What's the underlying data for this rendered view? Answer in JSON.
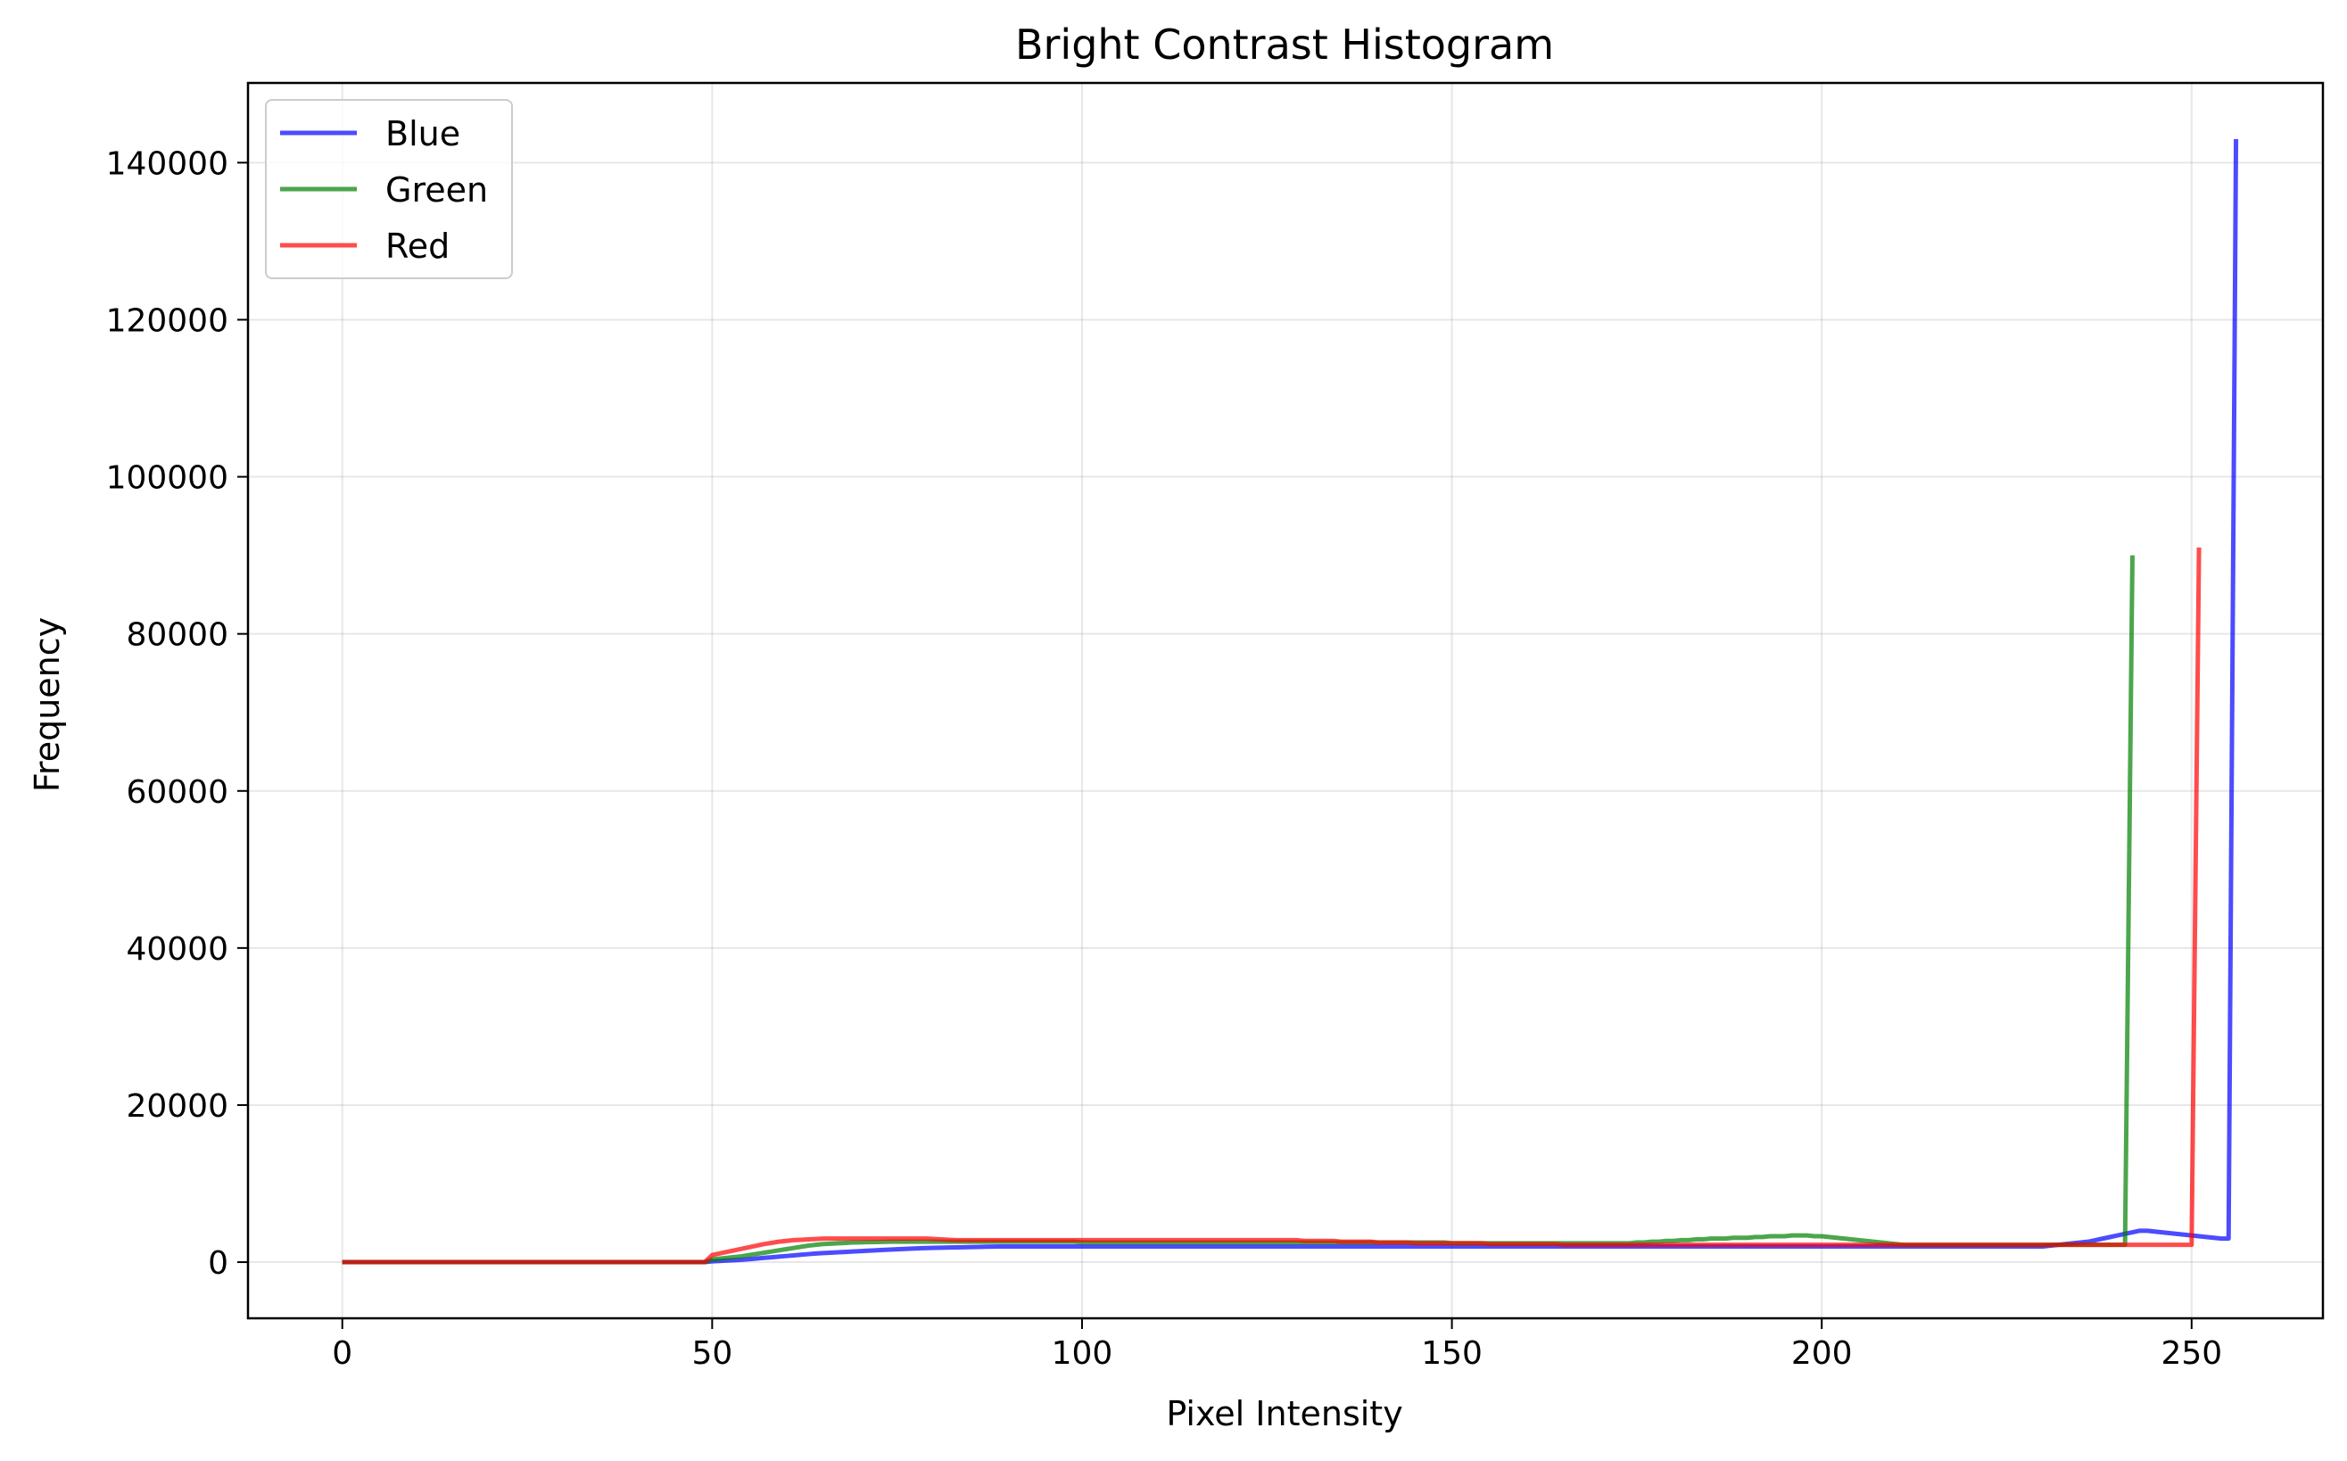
{
  "chart_data": {
    "type": "line",
    "title": "Bright Contrast Histogram",
    "xlabel": "Pixel Intensity",
    "ylabel": "Frequency",
    "xlim": [
      -12.75,
      267.75
    ],
    "ylim": [
      -7150,
      150150
    ],
    "xticks": [
      0,
      50,
      100,
      150,
      200,
      250
    ],
    "yticks": [
      0,
      20000,
      40000,
      60000,
      80000,
      100000,
      120000,
      140000
    ],
    "grid": true,
    "legend_position": "top-left",
    "series": [
      {
        "name": "Blue",
        "color": "#0000ff",
        "values": [
          0,
          0,
          0,
          0,
          0,
          0,
          0,
          0,
          0,
          0,
          0,
          0,
          0,
          0,
          0,
          0,
          0,
          0,
          0,
          0,
          0,
          0,
          0,
          0,
          0,
          0,
          0,
          0,
          0,
          0,
          0,
          0,
          0,
          0,
          0,
          0,
          0,
          0,
          0,
          0,
          0,
          0,
          0,
          0,
          0,
          0,
          0,
          0,
          0,
          0,
          100,
          150,
          200,
          250,
          300,
          380,
          460,
          540,
          620,
          700,
          780,
          860,
          940,
          1020,
          1100,
          1150,
          1200,
          1250,
          1300,
          1350,
          1400,
          1450,
          1500,
          1550,
          1600,
          1640,
          1680,
          1720,
          1760,
          1800,
          1820,
          1840,
          1860,
          1880,
          1900,
          1920,
          1940,
          1960,
          1980,
          2000,
          2000,
          2000,
          2000,
          2000,
          2000,
          2000,
          2000,
          2000,
          2000,
          2000,
          2000,
          2000,
          2000,
          2000,
          2000,
          2000,
          2000,
          2000,
          2000,
          2000,
          2000,
          2000,
          2000,
          2000,
          2000,
          2000,
          2000,
          2000,
          2000,
          2000,
          2000,
          2000,
          2000,
          2000,
          2000,
          2000,
          2000,
          2000,
          2000,
          2000,
          2000,
          2000,
          2000,
          2000,
          2000,
          2000,
          2000,
          2000,
          2000,
          2000,
          2000,
          2000,
          2000,
          2000,
          2000,
          2000,
          2000,
          2000,
          2000,
          2000,
          2000,
          2000,
          2000,
          2000,
          2000,
          2000,
          2000,
          2000,
          2000,
          2000,
          2000,
          2000,
          2000,
          2000,
          2000,
          2000,
          2000,
          2000,
          2000,
          2000,
          2000,
          2000,
          2000,
          2000,
          2000,
          2000,
          2000,
          2000,
          2000,
          2000,
          2000,
          2000,
          2000,
          2000,
          2000,
          2000,
          2000,
          2000,
          2000,
          2000,
          2000,
          2000,
          2000,
          2000,
          2000,
          2000,
          2000,
          2000,
          2000,
          2000,
          2000,
          2000,
          2000,
          2000,
          2000,
          2000,
          2000,
          2000,
          2000,
          2000,
          2000,
          2000,
          2000,
          2000,
          2000,
          2000,
          2000,
          2000,
          2000,
          2000,
          2000,
          2000,
          2000,
          2000,
          2000,
          2000,
          2000,
          2000,
          2000,
          2000,
          2000,
          2100,
          2200,
          2300,
          2400,
          2500,
          2600,
          2800,
          3000,
          3200,
          3400,
          3600,
          3800,
          4000,
          4000,
          3900,
          3800,
          3700,
          3600,
          3500,
          3400,
          3300,
          3200,
          3100,
          3000,
          3000,
          143000
        ]
      },
      {
        "name": "Green",
        "color": "#008000",
        "values": [
          0,
          0,
          0,
          0,
          0,
          0,
          0,
          0,
          0,
          0,
          0,
          0,
          0,
          0,
          0,
          0,
          0,
          0,
          0,
          0,
          0,
          0,
          0,
          0,
          0,
          0,
          0,
          0,
          0,
          0,
          0,
          0,
          0,
          0,
          0,
          0,
          0,
          0,
          0,
          0,
          0,
          0,
          0,
          0,
          0,
          0,
          0,
          0,
          0,
          0,
          350,
          450,
          550,
          650,
          750,
          900,
          1050,
          1200,
          1350,
          1500,
          1650,
          1800,
          1950,
          2100,
          2200,
          2300,
          2350,
          2400,
          2450,
          2500,
          2520,
          2540,
          2560,
          2580,
          2600,
          2600,
          2600,
          2600,
          2600,
          2600,
          2600,
          2600,
          2600,
          2600,
          2600,
          2600,
          2600,
          2600,
          2600,
          2600,
          2600,
          2600,
          2600,
          2600,
          2600,
          2600,
          2600,
          2600,
          2600,
          2600,
          2500,
          2500,
          2500,
          2500,
          2500,
          2500,
          2500,
          2500,
          2500,
          2500,
          2500,
          2500,
          2500,
          2500,
          2500,
          2500,
          2500,
          2500,
          2500,
          2500,
          2500,
          2500,
          2500,
          2500,
          2500,
          2500,
          2500,
          2500,
          2500,
          2500,
          2500,
          2500,
          2500,
          2500,
          2500,
          2500,
          2500,
          2500,
          2500,
          2500,
          2500,
          2500,
          2500,
          2500,
          2500,
          2500,
          2500,
          2500,
          2500,
          2500,
          2400,
          2400,
          2400,
          2400,
          2400,
          2400,
          2400,
          2400,
          2400,
          2400,
          2400,
          2400,
          2400,
          2400,
          2400,
          2400,
          2400,
          2400,
          2400,
          2400,
          2400,
          2400,
          2400,
          2400,
          2400,
          2500,
          2500,
          2600,
          2600,
          2700,
          2700,
          2800,
          2800,
          2900,
          2900,
          3000,
          3000,
          3000,
          3100,
          3100,
          3100,
          3200,
          3200,
          3300,
          3300,
          3300,
          3400,
          3400,
          3400,
          3300,
          3300,
          3200,
          3100,
          3000,
          2900,
          2800,
          2700,
          2600,
          2500,
          2400,
          2300,
          2200,
          2200,
          2200,
          2200,
          2200,
          2200,
          2200,
          2200,
          2200,
          2200,
          2200,
          2200,
          2200,
          2200,
          2200,
          2200,
          2200,
          2200,
          2200,
          2200,
          2200,
          2200,
          2200,
          2200,
          2200,
          2200,
          2200,
          2200,
          2200,
          2200,
          2200,
          90000
        ]
      },
      {
        "name": "Red",
        "color": "#ff0000",
        "values": [
          0,
          0,
          0,
          0,
          0,
          0,
          0,
          0,
          0,
          0,
          0,
          0,
          0,
          0,
          0,
          0,
          0,
          0,
          0,
          0,
          0,
          0,
          0,
          0,
          0,
          0,
          0,
          0,
          0,
          0,
          0,
          0,
          0,
          0,
          0,
          0,
          0,
          0,
          0,
          0,
          0,
          0,
          0,
          0,
          0,
          0,
          0,
          0,
          0,
          0,
          900,
          1100,
          1300,
          1500,
          1700,
          1900,
          2100,
          2300,
          2450,
          2600,
          2700,
          2800,
          2850,
          2900,
          2950,
          3000,
          3000,
          3000,
          3000,
          3000,
          3000,
          3000,
          3000,
          3000,
          3000,
          3000,
          3000,
          3000,
          3000,
          3000,
          2950,
          2900,
          2850,
          2800,
          2800,
          2800,
          2800,
          2800,
          2800,
          2800,
          2800,
          2800,
          2800,
          2800,
          2800,
          2800,
          2800,
          2800,
          2800,
          2800,
          2800,
          2800,
          2800,
          2800,
          2800,
          2800,
          2800,
          2800,
          2800,
          2800,
          2800,
          2800,
          2800,
          2800,
          2800,
          2800,
          2800,
          2800,
          2800,
          2800,
          2800,
          2800,
          2800,
          2800,
          2800,
          2800,
          2800,
          2800,
          2800,
          2800,
          2700,
          2700,
          2700,
          2700,
          2700,
          2600,
          2600,
          2600,
          2600,
          2600,
          2500,
          2500,
          2500,
          2500,
          2500,
          2400,
          2400,
          2400,
          2400,
          2400,
          2400,
          2400,
          2400,
          2400,
          2400,
          2300,
          2300,
          2300,
          2300,
          2300,
          2300,
          2300,
          2300,
          2300,
          2300,
          2200,
          2200,
          2200,
          2200,
          2200,
          2200,
          2200,
          2200,
          2200,
          2200,
          2200,
          2200,
          2200,
          2200,
          2200,
          2200,
          2200,
          2200,
          2200,
          2200,
          2200,
          2200,
          2200,
          2200,
          2200,
          2200,
          2200,
          2200,
          2200,
          2200,
          2200,
          2200,
          2200,
          2200,
          2200,
          2200,
          2200,
          2200,
          2200,
          2200,
          2200,
          2200,
          2200,
          2200,
          2200,
          2200,
          2200,
          2200,
          2200,
          2200,
          2200,
          2200,
          2200,
          2200,
          2200,
          2200,
          2200,
          2200,
          2200,
          2200,
          2200,
          2200,
          2200,
          2200,
          2200,
          2200,
          2200,
          2200,
          2200,
          2200,
          2200,
          2200,
          2200,
          2200,
          2200,
          2200,
          2200,
          2200,
          2200,
          2200,
          2200,
          2200,
          2200,
          2200,
          2200,
          2200,
          91000
        ]
      }
    ]
  }
}
